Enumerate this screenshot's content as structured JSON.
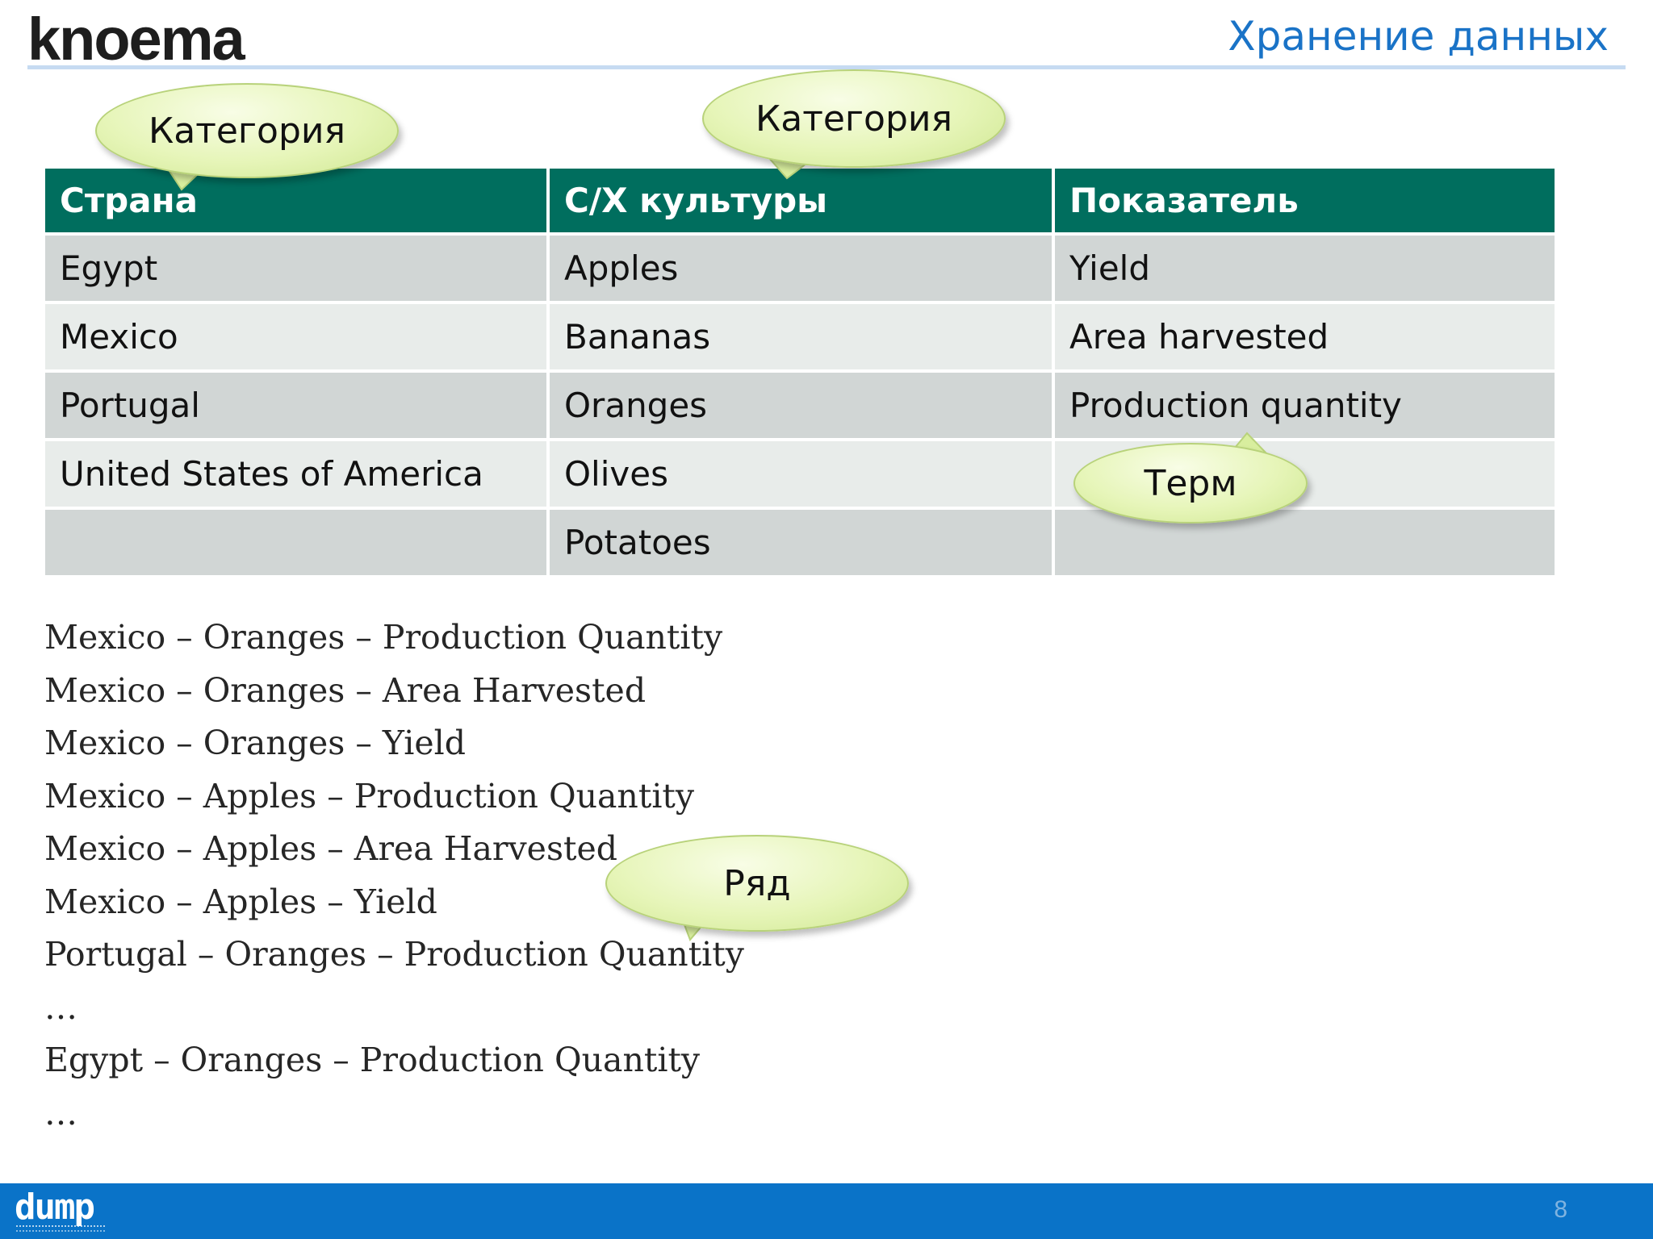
{
  "header": {
    "logo": "knoema",
    "title": "Хранение данных"
  },
  "table": {
    "headers": [
      "Страна",
      "С/Х культуры",
      "Показатель"
    ],
    "rows": [
      [
        "Egypt",
        "Apples",
        "Yield"
      ],
      [
        "Mexico",
        "Bananas",
        "Area harvested"
      ],
      [
        "Portugal",
        "Oranges",
        "Production quantity"
      ],
      [
        "United States of America",
        "Olives",
        ""
      ],
      [
        "",
        "Potatoes",
        ""
      ]
    ]
  },
  "callouts": {
    "category_1": "Категория",
    "category_2": "Категория",
    "term": "Терм",
    "row": "Ряд"
  },
  "series_rows": [
    "Mexico – Oranges – Production Quantity",
    "Mexico – Oranges – Area Harvested",
    "Mexico – Oranges – Yield",
    "Mexico – Apples – Production Quantity",
    "Mexico – Apples – Area Harvested",
    "Mexico – Apples – Yield",
    "Portugal – Oranges – Production Quantity",
    "…",
    "Egypt – Oranges – Production Quantity",
    "…"
  ],
  "footer": {
    "logo": "dump",
    "page_number": "8"
  },
  "colors": {
    "header_bg": "#006e5e",
    "row_dark": "#d1d6d5",
    "row_light": "#e8ecea",
    "title_blue": "#1a73c7",
    "footer_blue": "#0a73c8",
    "callout_fill": "#e6f5b8"
  }
}
